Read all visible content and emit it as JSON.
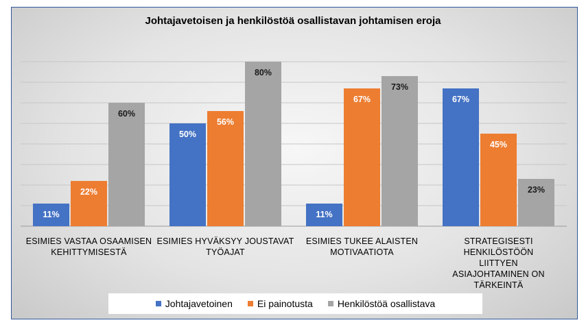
{
  "chart_data": {
    "type": "bar",
    "title": "Johtajavetoisen ja henkilöstöä osallistavan johtamisen eroja",
    "categories": [
      "ESIMIES VASTAA OSAAMISEN KEHITTYMISESTÄ",
      "ESIMIES HYVÄKSYY JOUSTAVAT TYÖAJAT",
      "ESIMIES TUKEE ALAISTEN MOTIVAATIOTA",
      "STRATEGISESTI HENKILÖSTÖÖN LIITTYEN ASIAJOHTAMINEN ON TÄRKEINTÄ"
    ],
    "series": [
      {
        "name": "Johtajavetoinen",
        "color": "#4472c4",
        "values": [
          11,
          50,
          11,
          67
        ]
      },
      {
        "name": "Ei painotusta",
        "color": "#ed7d31",
        "values": [
          22,
          56,
          67,
          45
        ]
      },
      {
        "name": "Henkilöstöä osallistava",
        "color": "#a5a5a5",
        "values": [
          60,
          80,
          73,
          23
        ]
      }
    ],
    "value_format": "%",
    "ylim": [
      0,
      80
    ],
    "grid": true,
    "legend_position": "bottom"
  }
}
